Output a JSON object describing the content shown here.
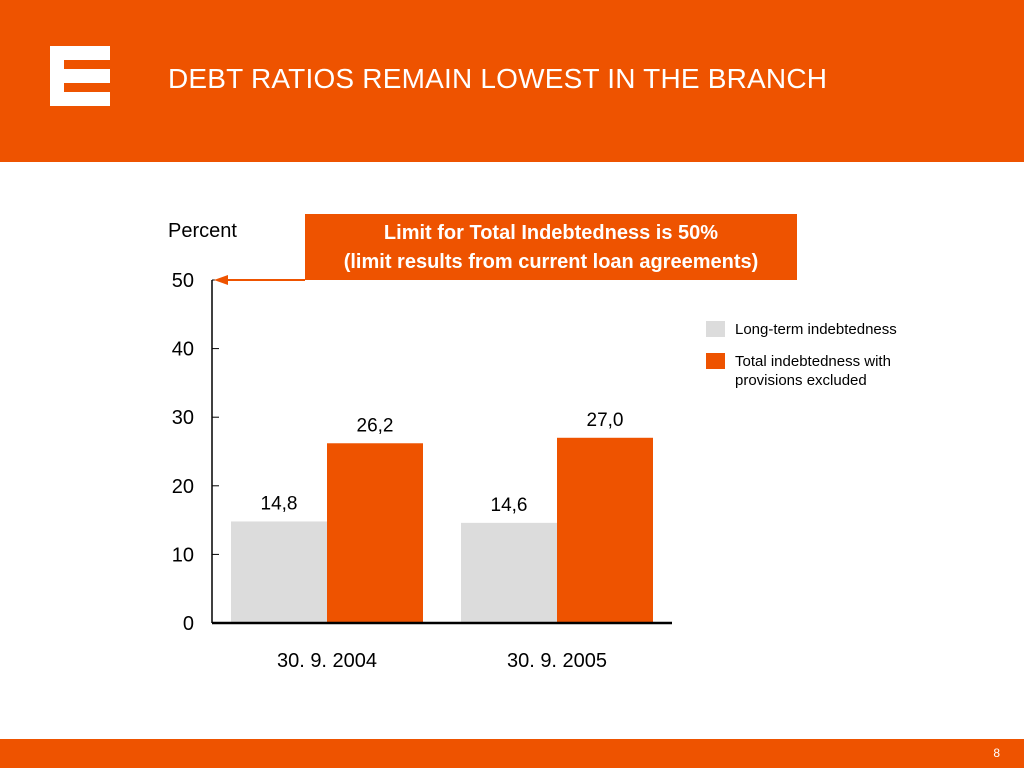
{
  "header": {
    "title": "DEBT RATIOS REMAIN LOWEST IN THE BRANCH",
    "logo_icon": "cez-logo-icon"
  },
  "callout": {
    "line1": "Limit for Total Indebtedness is 50%",
    "line2": "(limit results from current loan agreements)"
  },
  "footer": {
    "page_number": "8"
  },
  "colors": {
    "brand_orange": "#EE5300",
    "long_term_gray": "#DCDCDC",
    "text_black": "#000000"
  },
  "chart_data": {
    "type": "bar",
    "ylabel": "Percent",
    "xlabel": "",
    "ylim": [
      0,
      50
    ],
    "yticks": [
      "0",
      "10",
      "20",
      "30",
      "40",
      "50"
    ],
    "categories": [
      "30. 9. 2004",
      "30. 9. 2005"
    ],
    "series": [
      {
        "name": "Long-term indebtedness",
        "values": [
          14.8,
          14.6
        ],
        "labels": [
          "14,8",
          "14,6"
        ],
        "color": "#DCDCDC"
      },
      {
        "name": "Total indebtedness with provisions excluded",
        "values": [
          26.2,
          27.0
        ],
        "labels": [
          "26,2",
          "27,0"
        ],
        "color": "#EE5300"
      }
    ],
    "limit_value": 50,
    "legend_position": "right",
    "grid": false
  }
}
